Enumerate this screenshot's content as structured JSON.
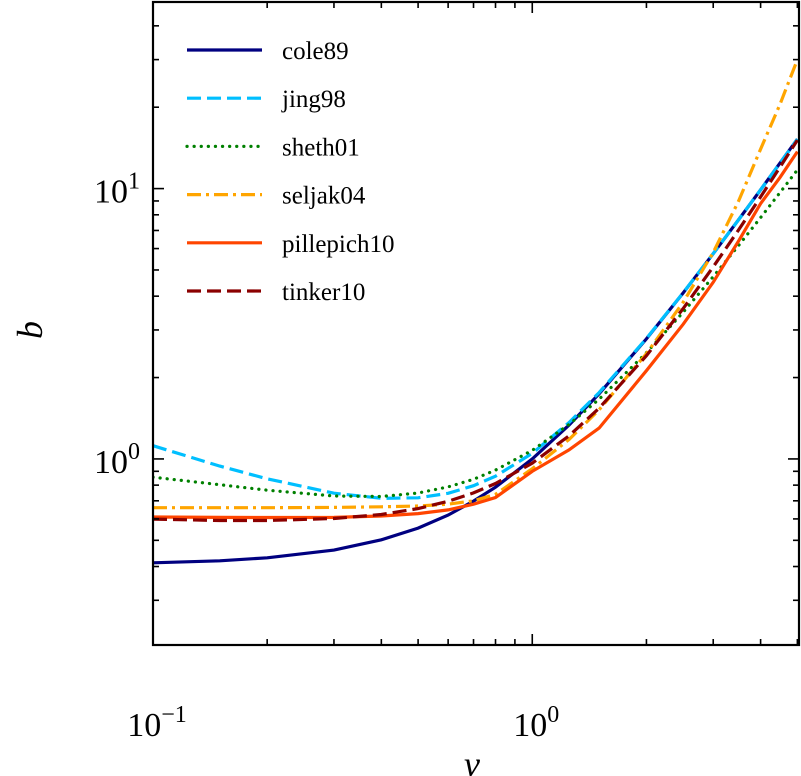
{
  "chart_data": {
    "type": "line",
    "title": "",
    "xlabel": "ν",
    "ylabel": "b",
    "xscale": "log",
    "yscale": "log",
    "xlim": [
      0.1,
      5.05
    ],
    "ylim": [
      0.205,
      49
    ],
    "grid": false,
    "legend_position": "top-left",
    "x_ticks": [
      {
        "value": 0.1,
        "base": "10",
        "exp": "−1"
      },
      {
        "value": 1,
        "base": "10",
        "exp": "0"
      }
    ],
    "y_ticks": [
      {
        "value": 1,
        "base": "10",
        "exp": "0"
      },
      {
        "value": 10,
        "base": "10",
        "exp": "1"
      }
    ],
    "x": [
      0.1,
      0.15,
      0.2,
      0.3,
      0.4,
      0.5,
      0.6,
      0.7,
      0.8,
      1.0,
      1.25,
      1.5,
      2.0,
      2.5,
      3.0,
      3.5,
      4.0,
      4.5,
      5.0
    ],
    "series": [
      {
        "name": "cole89",
        "color": "#000080",
        "dash": "solid",
        "values": [
          0.413,
          0.42,
          0.431,
          0.46,
          0.502,
          0.555,
          0.62,
          0.698,
          0.786,
          1.0,
          1.334,
          1.741,
          2.779,
          4.114,
          5.745,
          7.673,
          9.897,
          12.42,
          15.24
        ]
      },
      {
        "name": "jing98",
        "color": "#00BFFF",
        "dash": "dashed",
        "values": [
          1.119,
          0.941,
          0.844,
          0.747,
          0.715,
          0.718,
          0.746,
          0.796,
          0.863,
          1.049,
          1.363,
          1.76,
          2.789,
          4.12,
          5.75,
          7.67,
          9.9,
          12.42,
          15.24
        ]
      },
      {
        "name": "sheth01",
        "color": "#008000",
        "dash": "dotted",
        "values": [
          0.856,
          0.803,
          0.766,
          0.729,
          0.726,
          0.748,
          0.788,
          0.841,
          0.909,
          1.076,
          1.341,
          1.663,
          2.47,
          3.491,
          4.721,
          6.161,
          7.809,
          9.667,
          11.73
        ]
      },
      {
        "name": "seljak04",
        "color": "#FFA500",
        "dash": "dashdot",
        "values": [
          0.66,
          0.66,
          0.66,
          0.662,
          0.665,
          0.67,
          0.68,
          0.7,
          0.74,
          0.92,
          1.18,
          1.52,
          2.45,
          3.8,
          5.8,
          9.0,
          14.0,
          20.5,
          30.0
        ]
      },
      {
        "name": "pillepich10",
        "color": "#FF4500",
        "dash": "solid",
        "values": [
          0.61,
          0.608,
          0.607,
          0.608,
          0.615,
          0.628,
          0.648,
          0.68,
          0.72,
          0.9,
          1.08,
          1.3,
          2.12,
          3.15,
          4.5,
          6.4,
          8.8,
          11.0,
          13.7
        ]
      },
      {
        "name": "tinker10",
        "color": "#8B0000",
        "dash": "dashed",
        "values": [
          0.599,
          0.592,
          0.592,
          0.602,
          0.623,
          0.655,
          0.697,
          0.749,
          0.811,
          0.965,
          1.218,
          1.541,
          2.41,
          3.6,
          5.134,
          7.033,
          9.318,
          12.01,
          15.12
        ]
      }
    ]
  }
}
